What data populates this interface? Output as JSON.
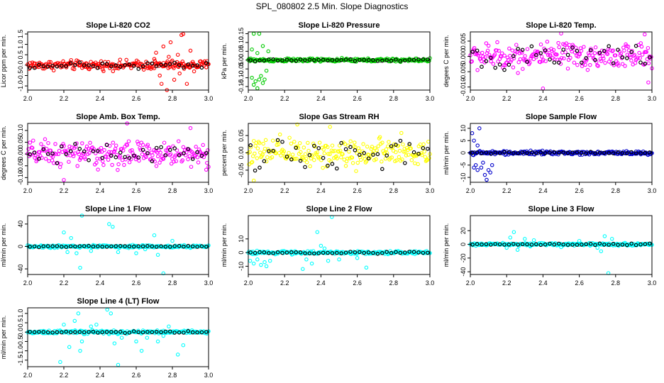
{
  "figure_title": "SPL_080802  2.5 Min. Slope Diagnostics",
  "chart_data": [
    {
      "type": "scatter",
      "title": "Slope Li-820 CO2",
      "ylabel": "Licor ppm per min.",
      "color": "#ff0000",
      "xlim": [
        2.0,
        3.0
      ],
      "ylim": [
        -1.2,
        1.6
      ],
      "yticks": [
        -1.0,
        -0.5,
        0.0,
        0.5,
        1.0,
        1.5
      ],
      "ytick_labels": [
        "-1.0",
        "-0.5",
        "0.0",
        "0.5",
        "1.0",
        "1.5"
      ],
      "xticks": [
        2.0,
        2.2,
        2.4,
        2.6,
        2.8,
        3.0
      ],
      "xtick_labels": [
        "2.0",
        "2.2",
        "2.4",
        "2.6",
        "2.8",
        "3.0"
      ],
      "spread": 0.18,
      "black_spread": 0.15,
      "outliers": [
        [
          2.71,
          0.6
        ],
        [
          2.73,
          -0.5
        ],
        [
          2.75,
          0.9
        ],
        [
          2.77,
          -1.2
        ],
        [
          2.79,
          1.1
        ],
        [
          2.81,
          -0.7
        ],
        [
          2.83,
          0.5
        ],
        [
          2.85,
          1.45
        ],
        [
          2.86,
          1.5
        ],
        [
          2.88,
          -0.9
        ],
        [
          2.9,
          0.7
        ],
        [
          2.74,
          -0.9
        ],
        [
          2.78,
          0.4
        ],
        [
          2.84,
          -0.4
        ],
        [
          2.92,
          -0.3
        ],
        [
          2.7,
          0.3
        ]
      ]
    },
    {
      "type": "scatter",
      "title": "Slope Li-820 Pressure",
      "ylabel": "kPa per min.",
      "color": "#00cc00",
      "xlim": [
        2.0,
        3.0
      ],
      "ylim": [
        -0.17,
        0.16
      ],
      "yticks": [
        -0.15,
        -0.1,
        -0.05,
        0.0,
        0.05,
        0.1,
        0.15
      ],
      "ytick_labels": [
        "-0.15",
        "-0.10",
        "-0.05",
        "0.00",
        "0.05",
        "0.10",
        "0.15"
      ],
      "xticks": [
        2.0,
        2.2,
        2.4,
        2.6,
        2.8,
        3.0
      ],
      "xtick_labels": [
        "2.0",
        "2.2",
        "2.4",
        "2.6",
        "2.8",
        "3.0"
      ],
      "spread": 0.008,
      "black_spread": 0.004,
      "outliers": [
        [
          2.03,
          0.15
        ],
        [
          2.06,
          0.15
        ],
        [
          2.02,
          -0.1
        ],
        [
          2.04,
          -0.12
        ],
        [
          2.06,
          -0.11
        ],
        [
          2.08,
          -0.13
        ],
        [
          2.05,
          -0.16
        ],
        [
          2.07,
          -0.09
        ],
        [
          2.09,
          -0.11
        ],
        [
          2.03,
          -0.14
        ],
        [
          2.02,
          0.06
        ],
        [
          2.05,
          0.04
        ],
        [
          2.08,
          0.08
        ],
        [
          2.11,
          0.05
        ],
        [
          2.1,
          -0.06
        ]
      ]
    },
    {
      "type": "scatter",
      "title": "Slope Li-820 Temp.",
      "ylabel": "degees C per min.",
      "color": "#ff00ff",
      "xlim": [
        2.0,
        3.0
      ],
      "ylim": [
        -0.011,
        0.008
      ],
      "yticks": [
        -0.01,
        -0.005,
        0.0,
        0.005
      ],
      "ytick_labels": [
        "-0.010",
        "-0.005",
        "0.000",
        "0.005"
      ],
      "xticks": [
        2.0,
        2.2,
        2.4,
        2.6,
        2.8,
        3.0
      ],
      "xtick_labels": [
        "2.0",
        "2.2",
        "2.4",
        "2.6",
        "2.8",
        "3.0"
      ],
      "spread": 0.0035,
      "black_spread": 0.003,
      "outliers": [
        [
          2.4,
          -0.0105
        ],
        [
          2.96,
          0.0072
        ],
        [
          2.5,
          0.0075
        ],
        [
          2.98,
          -0.0085
        ]
      ]
    },
    {
      "type": "scatter",
      "title": "Slope Amb. Box Temp.",
      "ylabel": "degrees C per min.",
      "color": "#ff00ff",
      "xlim": [
        2.0,
        3.0
      ],
      "ylim": [
        -0.12,
        0.13
      ],
      "yticks": [
        -0.1,
        -0.05,
        0.0,
        0.05,
        0.1
      ],
      "ytick_labels": [
        "-0.10",
        "-0.05",
        "0.00",
        "0.05",
        "0.10"
      ],
      "xticks": [
        2.0,
        2.2,
        2.4,
        2.6,
        2.8,
        3.0
      ],
      "xtick_labels": [
        "2.0",
        "2.2",
        "2.4",
        "2.6",
        "2.8",
        "3.0"
      ],
      "spread": 0.045,
      "black_spread": 0.035,
      "outliers": [
        [
          2.55,
          0.13
        ],
        [
          2.2,
          -0.11
        ],
        [
          2.9,
          0.11
        ]
      ]
    },
    {
      "type": "scatter",
      "title": "Slope Gas Stream RH",
      "ylabel": "percent per min.",
      "color": "#ffff00",
      "xlim": [
        2.0,
        3.0
      ],
      "ylim": [
        -0.085,
        0.085
      ],
      "yticks": [
        -0.05,
        0.0,
        0.05
      ],
      "ytick_labels": [
        "-0.05",
        "0.00",
        "0.05"
      ],
      "xticks": [
        2.0,
        2.2,
        2.4,
        2.6,
        2.8,
        3.0
      ],
      "xtick_labels": [
        "2.0",
        "2.2",
        "2.4",
        "2.6",
        "2.8",
        "3.0"
      ],
      "spread": 0.035,
      "black_spread": 0.035,
      "outliers": [
        [
          2.27,
          0.082
        ],
        [
          2.03,
          -0.08
        ],
        [
          2.45,
          0.075
        ]
      ]
    },
    {
      "type": "scatter",
      "title": "Slope Sample Flow",
      "ylabel": "ml/min per min.",
      "color": "#0000cc",
      "xlim": [
        2.0,
        3.0
      ],
      "ylim": [
        -12,
        12
      ],
      "yticks": [
        -10,
        -5,
        0,
        5,
        10
      ],
      "ytick_labels": [
        "-10",
        "-5",
        "0",
        "5",
        "10"
      ],
      "xticks": [
        2.0,
        2.2,
        2.4,
        2.6,
        2.8,
        3.0
      ],
      "xtick_labels": [
        "2.0",
        "2.2",
        "2.4",
        "2.6",
        "2.8",
        "3.0"
      ],
      "spread": 0.6,
      "black_spread": 0.3,
      "outliers": [
        [
          2.01,
          8
        ],
        [
          2.02,
          5
        ],
        [
          2.05,
          10
        ],
        [
          2.03,
          -5
        ],
        [
          2.04,
          -7
        ],
        [
          2.06,
          -6
        ],
        [
          2.08,
          -9
        ],
        [
          2.09,
          -11
        ],
        [
          2.1,
          -7
        ],
        [
          2.07,
          -4
        ],
        [
          2.11,
          -8
        ],
        [
          2.02,
          -6
        ],
        [
          2.12,
          -5
        ],
        [
          2.04,
          3
        ]
      ]
    },
    {
      "type": "scatter",
      "title": "Slope Line 1 Flow",
      "ylabel": "ml/min per min.",
      "color": "#00ffff",
      "xlim": [
        2.0,
        3.0
      ],
      "ylim": [
        -50,
        55
      ],
      "yticks": [
        -40,
        0,
        40
      ],
      "ytick_labels": [
        "-40",
        "0",
        "40"
      ],
      "xticks": [
        2.0,
        2.2,
        2.4,
        2.6,
        2.8,
        3.0
      ],
      "xtick_labels": [
        "2.0",
        "2.2",
        "2.4",
        "2.6",
        "2.8",
        "3.0"
      ],
      "spread": 2.0,
      "black_spread": 1.0,
      "outliers": [
        [
          2.2,
          25
        ],
        [
          2.22,
          -10
        ],
        [
          2.24,
          15
        ],
        [
          2.27,
          -12
        ],
        [
          2.29,
          -38
        ],
        [
          2.3,
          55
        ],
        [
          2.35,
          -8
        ],
        [
          2.45,
          40
        ],
        [
          2.47,
          35
        ],
        [
          2.5,
          -10
        ],
        [
          2.6,
          -12
        ],
        [
          2.7,
          20
        ],
        [
          2.72,
          -15
        ],
        [
          2.75,
          -48
        ],
        [
          2.8,
          10
        ],
        [
          2.65,
          -5
        ]
      ]
    },
    {
      "type": "scatter",
      "title": "Slope Line 2 Flow",
      "ylabel": "ml/min per min.",
      "color": "#00ffff",
      "xlim": [
        2.0,
        3.0
      ],
      "ylim": [
        -16,
        27
      ],
      "yticks": [
        -10,
        0,
        10
      ],
      "ytick_labels": [
        "-10",
        "0",
        "10"
      ],
      "xticks": [
        2.0,
        2.2,
        2.4,
        2.6,
        2.8,
        3.0
      ],
      "xtick_labels": [
        "2.0",
        "2.2",
        "2.4",
        "2.6",
        "2.8",
        "3.0"
      ],
      "spread": 0.9,
      "black_spread": 0.6,
      "outliers": [
        [
          2.01,
          -6
        ],
        [
          2.03,
          -8
        ],
        [
          2.05,
          -5
        ],
        [
          2.07,
          -9
        ],
        [
          2.09,
          -7
        ],
        [
          2.1,
          -10
        ],
        [
          2.12,
          -6
        ],
        [
          2.3,
          -12
        ],
        [
          2.32,
          -5
        ],
        [
          2.35,
          -8
        ],
        [
          2.4,
          5
        ],
        [
          2.42,
          3
        ],
        [
          2.44,
          -6
        ],
        [
          2.46,
          26
        ],
        [
          2.38,
          15
        ],
        [
          2.6,
          -4
        ],
        [
          2.65,
          -11
        ],
        [
          2.5,
          -5
        ]
      ]
    },
    {
      "type": "scatter",
      "title": "Slope Line 3 Flow",
      "ylabel": "ml/min per min.",
      "color": "#00ffff",
      "xlim": [
        2.0,
        3.0
      ],
      "ylim": [
        -44,
        42
      ],
      "yticks": [
        -40,
        -20,
        0,
        20
      ],
      "ytick_labels": [
        "-40",
        "-20",
        "0",
        "20"
      ],
      "xticks": [
        2.0,
        2.2,
        2.4,
        2.6,
        2.8,
        3.0
      ],
      "xtick_labels": [
        "2.0",
        "2.2",
        "2.4",
        "2.6",
        "2.8",
        "3.0"
      ],
      "spread": 1.5,
      "black_spread": 1.0,
      "outliers": [
        [
          2.2,
          -5
        ],
        [
          2.22,
          10
        ],
        [
          2.24,
          18
        ],
        [
          2.26,
          -8
        ],
        [
          2.3,
          8
        ],
        [
          2.33,
          -3
        ],
        [
          2.5,
          -4
        ],
        [
          2.6,
          5
        ],
        [
          2.7,
          -5
        ],
        [
          2.74,
          12
        ],
        [
          2.76,
          -42
        ],
        [
          2.72,
          -10
        ],
        [
          2.78,
          8
        ],
        [
          2.35,
          6
        ]
      ]
    },
    {
      "type": "scatter",
      "title": "Slope Line 4 (LT) Flow",
      "ylabel": "ml/min per min.",
      "color": "#00ffff",
      "xlim": [
        2.0,
        3.0
      ],
      "ylim": [
        -1.85,
        1.3
      ],
      "yticks": [
        -1.5,
        -1.0,
        -0.5,
        0.0,
        0.5,
        1.0
      ],
      "ytick_labels": [
        "-1.5",
        "-1.0",
        "-0.5",
        "0.0",
        "0.5",
        "1.0"
      ],
      "xticks": [
        2.0,
        2.2,
        2.4,
        2.6,
        2.8,
        3.0
      ],
      "xtick_labels": [
        "2.0",
        "2.2",
        "2.4",
        "2.6",
        "2.8",
        "3.0"
      ],
      "spread": 0.07,
      "black_spread": 0.04,
      "outliers": [
        [
          2.18,
          -1.6
        ],
        [
          2.2,
          0.4
        ],
        [
          2.23,
          -0.8
        ],
        [
          2.26,
          0.6
        ],
        [
          2.28,
          1.0
        ],
        [
          2.29,
          -1.0
        ],
        [
          2.3,
          -0.5
        ],
        [
          2.38,
          0.4
        ],
        [
          2.44,
          1.2
        ],
        [
          2.46,
          1.0
        ],
        [
          2.48,
          -0.6
        ],
        [
          2.5,
          -1.75
        ],
        [
          2.52,
          -0.3
        ],
        [
          2.6,
          -0.5
        ],
        [
          2.63,
          -1.0
        ],
        [
          2.66,
          -0.3
        ],
        [
          2.72,
          -0.5
        ],
        [
          2.75,
          -0.2
        ],
        [
          2.78,
          0.3
        ],
        [
          2.83,
          -1.2
        ],
        [
          2.86,
          -0.7
        ],
        [
          2.35,
          0.3
        ]
      ]
    }
  ]
}
